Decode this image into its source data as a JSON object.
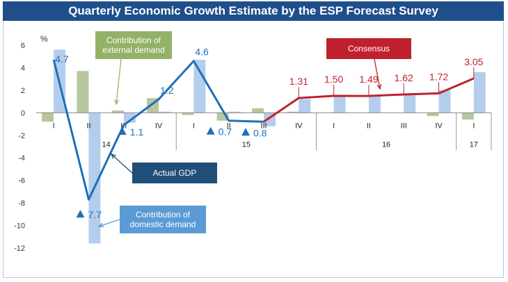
{
  "chart_data": {
    "type": "bar",
    "title": "Quarterly Economic Growth Estimate by the ESP Forecast Survey",
    "ylabel": "%",
    "ylim": [
      -12,
      6
    ],
    "yticks": [
      6,
      4,
      2,
      0,
      -2,
      -4,
      -6,
      -8,
      -10,
      -12
    ],
    "quarters": [
      "I",
      "II",
      "III",
      "IV",
      "I",
      "II",
      "III",
      "IV",
      "I",
      "II",
      "III",
      "IV",
      "I"
    ],
    "years": [
      {
        "label": "14",
        "start": 0,
        "end": 3
      },
      {
        "label": "15",
        "start": 4,
        "end": 7
      },
      {
        "label": "16",
        "start": 8,
        "end": 11
      },
      {
        "label": "17",
        "start": 12,
        "end": 12
      }
    ],
    "series": [
      {
        "name": "Contribution of external demand",
        "color": "#b7c79d",
        "values": [
          -0.8,
          3.7,
          0.2,
          1.3,
          -0.2,
          -0.7,
          0.4,
          0.1,
          null,
          null,
          null,
          -0.3,
          -0.6
        ]
      },
      {
        "name": "Contribution of domestic demand",
        "color": "#b4cdec",
        "values": [
          5.6,
          -11.6,
          -0.9,
          0.1,
          4.7,
          0.1,
          -1.2,
          1.2,
          1.5,
          1.5,
          1.6,
          2.0,
          3.6
        ]
      },
      {
        "name": "Actual GDP",
        "color": "#1f6fb8",
        "values": [
          4.7,
          -7.7,
          -1.1,
          1.2,
          4.6,
          -0.7,
          -0.8,
          null,
          null,
          null,
          null,
          null,
          null
        ]
      },
      {
        "name": "Consensus",
        "color": "#c0202e",
        "values": [
          null,
          null,
          null,
          null,
          null,
          null,
          -0.8,
          1.31,
          1.5,
          1.49,
          1.62,
          1.72,
          3.05
        ]
      }
    ],
    "data_labels": [
      {
        "series": "Actual GDP",
        "index": 0,
        "text": "4.7",
        "marker": false
      },
      {
        "series": "Actual GDP",
        "index": 1,
        "text": "7.7",
        "marker": true
      },
      {
        "series": "Actual GDP",
        "index": 2,
        "text": "1.1",
        "marker": true
      },
      {
        "series": "Actual GDP",
        "index": 3,
        "text": "1.2",
        "marker": false
      },
      {
        "series": "Actual GDP",
        "index": 4,
        "text": "4.6",
        "marker": false
      },
      {
        "series": "Actual GDP",
        "index": 5,
        "text": "0.7",
        "marker": true
      },
      {
        "series": "Actual GDP",
        "index": 6,
        "text": "0.8",
        "marker": true
      },
      {
        "series": "Consensus",
        "index": 7,
        "text": "1.31",
        "marker": false
      },
      {
        "series": "Consensus",
        "index": 8,
        "text": "1.50",
        "marker": false
      },
      {
        "series": "Consensus",
        "index": 9,
        "text": "1.49",
        "marker": false
      },
      {
        "series": "Consensus",
        "index": 10,
        "text": "1.62",
        "marker": false
      },
      {
        "series": "Consensus",
        "index": 11,
        "text": "1.72",
        "marker": false
      },
      {
        "series": "Consensus",
        "index": 12,
        "text": "3.05",
        "marker": false
      }
    ],
    "callouts": [
      {
        "text": [
          "Contribution of",
          "external demand"
        ],
        "series": "Contribution of external demand",
        "fill": "#93b267",
        "text_color": "#ffffff"
      },
      {
        "text": [
          "Actual GDP"
        ],
        "series": "Actual GDP",
        "fill": "#1f4e79",
        "text_color": "#ffffff"
      },
      {
        "text": [
          "Contribution of",
          "domestic demand"
        ],
        "series": "Contribution of domestic demand",
        "fill": "#5b9bd5",
        "text_color": "#ffffff"
      },
      {
        "text": [
          "Consensus"
        ],
        "series": "Consensus",
        "fill": "#c0202e",
        "text_color": "#ffffff"
      }
    ]
  }
}
